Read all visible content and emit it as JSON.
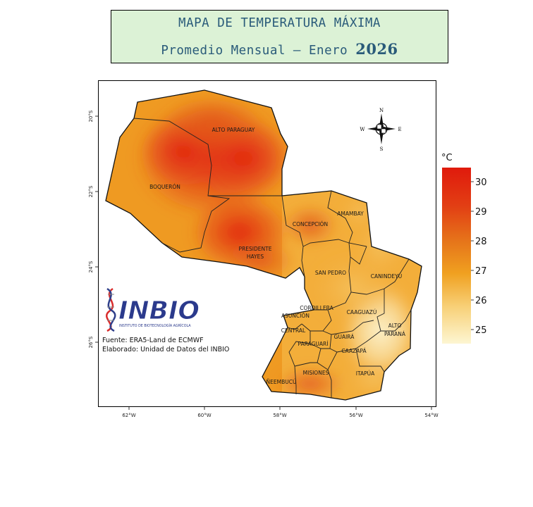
{
  "title": {
    "line1": "MAPA DE TEMPERATURA MÁXIMA",
    "line2_prefix": "Promedio Mensual – Enero ",
    "line2_year": "2026"
  },
  "legend": {
    "unit": "°C",
    "labels": [
      "30",
      "29",
      "28",
      "27",
      "26",
      "25"
    ],
    "colors": {
      "high": "#e01a0c",
      "mid_high": "#e46a16",
      "mid": "#f0a020",
      "low": "#fbf2c4"
    }
  },
  "axes": {
    "lon_ticks": [
      "62°W",
      "60°W",
      "58°W",
      "56°W",
      "54°W"
    ],
    "lat_ticks": [
      "20°S",
      "22°S",
      "24°S",
      "26°S"
    ]
  },
  "compass": {
    "n": "N",
    "s": "S",
    "e": "E",
    "w": "W"
  },
  "departments": {
    "alto_paraguay": "ALTO PARAGUAY",
    "boqueron": "BOQUERÓN",
    "presidente_hayes_1": "PRESIDENTE",
    "presidente_hayes_2": "HAYES",
    "concepcion": "CONCEPCIÓN",
    "amambay": "AMAMBAY",
    "san_pedro": "SAN PEDRO",
    "canindeyu": "CANINDEYÚ",
    "cordillera": "CORDILLERA",
    "asuncion": "ASUNCIÓN",
    "central": "CENTRAL",
    "caaguazu": "CAAGUAZÚ",
    "alto_parana_1": "ALTO",
    "alto_parana_2": "PARANÁ",
    "guaira": "GUAIRÁ",
    "paraguari": "PARAGUARÍ",
    "caazapa": "CAAZAPÁ",
    "misiones": "MISIONES",
    "itapua": "ITAPÚA",
    "neembucu": "ÑEEMBUCÚ"
  },
  "logo": {
    "name": "INBIO",
    "subtitle": "INSTITUTO DE BIOTECNOLOGÍA AGRÍCOLA"
  },
  "source": {
    "line1": "Fuente: ERA5-Land de ECMWF",
    "line2": "Elaborado: Unidad de Datos del INBIO"
  }
}
